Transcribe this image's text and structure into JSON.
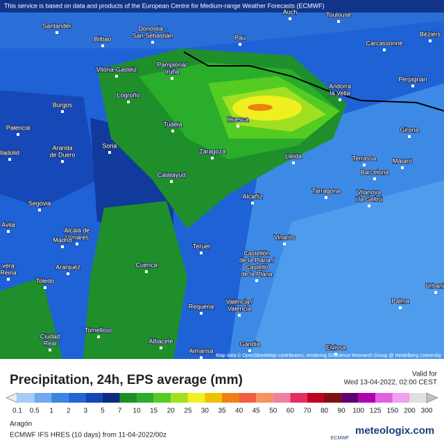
{
  "header": {
    "notice": "This service is based on data and products of the European Centre for Medium-range Weather Forecasts (ECMWF)",
    "attribution": "Map data © OpenStreetMap contributors, rendering GIScience Research Group @ Heidelberg University"
  },
  "map": {
    "cities": [
      [
        "Auch"
      ],
      [
        "Toulouse"
      ],
      [
        "Béziers"
      ],
      [
        "Santander"
      ],
      [
        "Donostia -",
        "San Sebastián"
      ],
      [
        "Bilbao"
      ],
      [
        "Pau"
      ],
      [
        "Carcassonne"
      ],
      [
        "Vitoria-Gasteiz"
      ],
      [
        "Pamplona/",
        "Iruña"
      ],
      [
        "Andorra",
        "la Vella"
      ],
      [
        "Perpignan"
      ],
      [
        "Logroño"
      ],
      [
        "Burgos"
      ],
      [
        "Huesca"
      ],
      [
        "Tudela"
      ],
      [
        "Girona"
      ],
      [
        "Palencia"
      ],
      [
        "Aranda",
        "de Duero"
      ],
      [
        "Soria"
      ],
      [
        "Zaragoza"
      ],
      [
        "Lleida"
      ],
      [
        "lladolid"
      ],
      [
        "Terrassa"
      ],
      [
        "Mataró"
      ],
      [
        "Barcelona"
      ],
      [
        "Calatayud"
      ],
      [
        "Tarragona"
      ],
      [
        "Vilanova",
        "i la Geltrú"
      ],
      [
        "Segovia"
      ],
      [
        "Alcañiz"
      ],
      [
        "Ávila"
      ],
      [
        "Alcalá de",
        "Henares"
      ],
      [
        "Madrid"
      ],
      [
        "Vinaròs"
      ],
      [
        "Teruel"
      ],
      [
        "Castellón",
        "de la Plana /",
        "Castelló",
        "de la Plana"
      ],
      [
        "vera",
        "Reina"
      ],
      [
        "Aranjuez"
      ],
      [
        "Cuenca"
      ],
      [
        "Urbanit"
      ],
      [
        "Toledo"
      ],
      [
        "Palma"
      ],
      [
        "Requena"
      ],
      [
        "València /",
        "Valencia"
      ],
      [
        "Ciudad",
        "Real"
      ],
      [
        "Tomelloso"
      ],
      [
        "Albacete"
      ],
      [
        "Almansa"
      ],
      [
        "Gandia"
      ],
      [
        "Eivissa"
      ]
    ]
  },
  "legend": {
    "title": "Precipitation, 24h, EPS average (mm)",
    "valid_label": "Valid for",
    "valid_time": "Wed 13-04-2022, 02:00 CEST",
    "labels": [
      0.1,
      0.5,
      1,
      2,
      3,
      5,
      7,
      10,
      15,
      20,
      25,
      30,
      35,
      40,
      45,
      50,
      60,
      70,
      80,
      90,
      100,
      125,
      150,
      200,
      300
    ],
    "colors": [
      "#e8eef8",
      "#a6cdf7",
      "#6fa9ef",
      "#3b84e4",
      "#2466d4",
      "#1446b3",
      "#0b2c80",
      "#1e8f2a",
      "#2aad2a",
      "#55cc22",
      "#a0e020",
      "#f0f020",
      "#f0c000",
      "#f08010",
      "#f06040",
      "#f89060",
      "#f080a0",
      "#e03060",
      "#c00020",
      "#801010",
      "#600070",
      "#b000b0",
      "#e060e0",
      "#f0a0f0",
      "#e0e0e0",
      "#c0c0c0"
    ]
  },
  "footer": {
    "region": "Aragón",
    "model": "ECMWF IFS HRES (10 days) from 11-04-2022/00z",
    "ecmwf": "ECMWF",
    "brand": "meteologix.com"
  }
}
